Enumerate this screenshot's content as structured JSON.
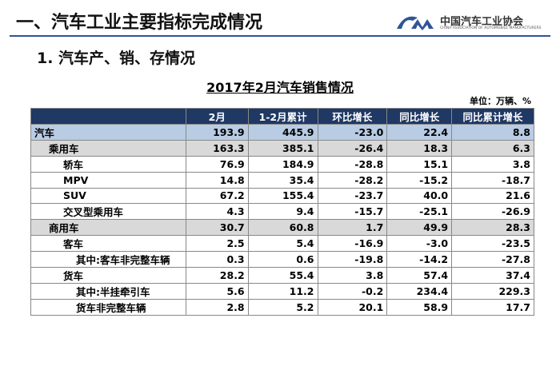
{
  "header": {
    "title": "一、汽车工业主要指标完成情况",
    "logo_name": "中国汽车工业协会",
    "logo_subtitle": "CHINA ASSOCIATION OF AUTOMOBILE MANUFACTURERS"
  },
  "section": "1. 汽车产、销、存情况",
  "table": {
    "title": "2017年2月汽车销售情况",
    "unit": "单位：万辆、%",
    "columns": [
      "2月",
      "1-2月累计",
      "环比增长",
      "同比增长",
      "同比累计增长"
    ],
    "rows": [
      [
        "汽车",
        "193.9",
        "445.9",
        "-23.0",
        "22.4",
        "8.8"
      ],
      [
        "乘用车",
        "163.3",
        "385.1",
        "-26.4",
        "18.3",
        "6.3"
      ],
      [
        "轿车",
        "76.9",
        "184.9",
        "-28.8",
        "15.1",
        "3.8"
      ],
      [
        "MPV",
        "14.8",
        "35.4",
        "-28.2",
        "-15.2",
        "-18.7"
      ],
      [
        "SUV",
        "67.2",
        "155.4",
        "-23.7",
        "40.0",
        "21.6"
      ],
      [
        "交叉型乘用车",
        "4.3",
        "9.4",
        "-15.7",
        "-25.1",
        "-26.9"
      ],
      [
        "商用车",
        "30.7",
        "60.8",
        "1.7",
        "49.9",
        "28.3"
      ],
      [
        "客车",
        "2.5",
        "5.4",
        "-16.9",
        "-3.0",
        "-23.5"
      ],
      [
        "其中:客车非完整车辆",
        "0.3",
        "0.6",
        "-19.8",
        "-14.2",
        "-27.8"
      ],
      [
        "货车",
        "28.2",
        "55.4",
        "3.8",
        "57.4",
        "37.4"
      ],
      [
        "其中:半挂牵引车",
        "5.6",
        "11.2",
        "-0.2",
        "234.4",
        "229.3"
      ],
      [
        "货车非完整车辆",
        "2.8",
        "5.2",
        "20.1",
        "58.9",
        "17.7"
      ]
    ]
  }
}
